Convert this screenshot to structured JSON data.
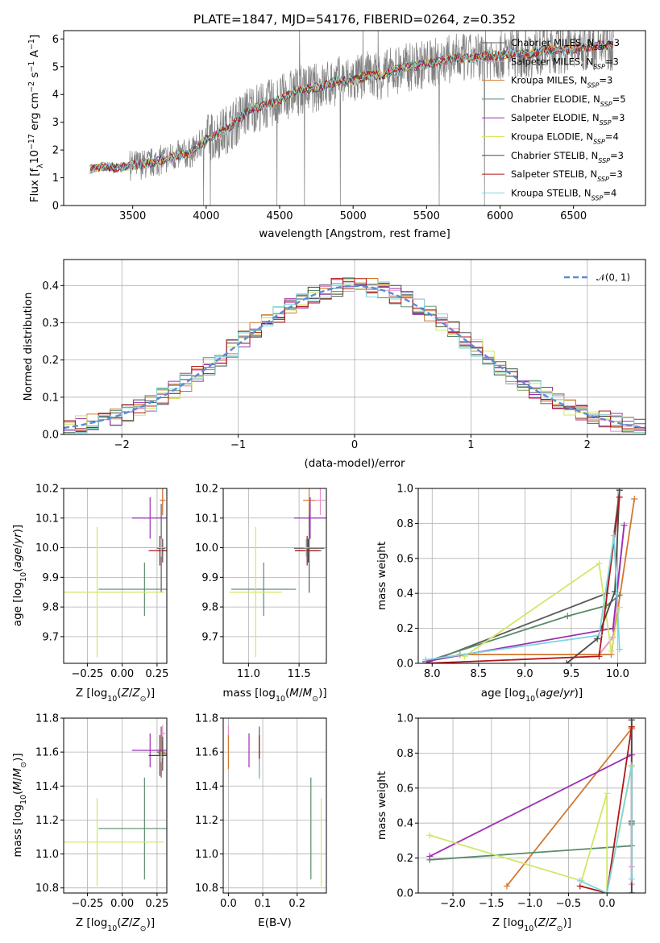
{
  "figure": {
    "title": "PLATE=1847, MJD=54176, FIBERID=0264, z=0.352"
  },
  "colors": {
    "data": "#808080",
    "models": [
      "#5a5a5a",
      "#e58fc7",
      "#d2782e",
      "#5a8a6a",
      "#9a30b0",
      "#cfe865",
      "#4a4a4a",
      "#b01818",
      "#7fd6dc"
    ]
  },
  "chart_data": [
    {
      "id": "spectrum",
      "type": "line",
      "title": "PLATE=1847, MJD=54176, FIBERID=0264, z=0.352",
      "xlabel": "wavelength [Angstrom, rest frame]",
      "ylabel": "Flux [f_λ 10^-17 erg cm^-2 s^-1 A^-1]",
      "xlim": [
        3030,
        6990
      ],
      "ylim": [
        0,
        6.3
      ],
      "xticks": [
        3500,
        4000,
        4500,
        5000,
        5500,
        6000,
        6500
      ],
      "yticks": [
        0,
        1,
        2,
        3,
        4,
        5,
        6
      ],
      "grid": false,
      "legend_position": "top-right",
      "series": [
        {
          "name": "Chabrier MILES, N_SSP=3"
        },
        {
          "name": "Salpeter MILES, N_SSP=3"
        },
        {
          "name": "Kroupa MILES, N_SSP=3"
        },
        {
          "name": "Chabrier ELODIE, N_SSP=5"
        },
        {
          "name": "Salpeter ELODIE, N_SSP=3"
        },
        {
          "name": "Kroupa ELODIE, N_SSP=4"
        },
        {
          "name": "Chabrier STELIB, N_SSP=3"
        },
        {
          "name": "Salpeter STELIB, N_SSP=3"
        },
        {
          "name": "Kroupa STELIB, N_SSP=4"
        }
      ],
      "continuum": {
        "x": [
          3210,
          3300,
          3400,
          3500,
          3600,
          3700,
          3800,
          3900,
          4000,
          4100,
          4200,
          4300,
          4400,
          4500,
          4600,
          4700,
          4800,
          4900,
          5000,
          5100,
          5200,
          5300,
          5400,
          5500,
          5600,
          5700,
          5800,
          5900,
          6000,
          6100,
          6200,
          6300,
          6400,
          6500,
          6600,
          6700,
          6770
        ],
        "y": [
          1.3,
          1.4,
          1.35,
          1.45,
          1.5,
          1.65,
          1.8,
          1.9,
          2.4,
          2.6,
          3.0,
          3.5,
          3.6,
          3.8,
          4.1,
          4.2,
          4.3,
          4.5,
          4.5,
          4.7,
          4.7,
          4.9,
          5.0,
          5.1,
          5.2,
          5.3,
          5.3,
          5.4,
          5.4,
          5.5,
          5.45,
          5.6,
          5.6,
          5.65,
          5.7,
          5.8,
          5.75
        ]
      }
    },
    {
      "id": "residuals",
      "type": "line",
      "xlabel": "(data-model)/error",
      "ylabel": "Normed distribution",
      "xlim": [
        -2.5,
        2.5
      ],
      "ylim": [
        0,
        0.47
      ],
      "xticks": [
        -2,
        -1,
        0,
        1,
        2
      ],
      "yticks": [
        0.0,
        0.1,
        0.2,
        0.3,
        0.4
      ],
      "grid": true,
      "legend_position": "top-right",
      "series": [
        {
          "name": "𝒩(0, 1)",
          "style": "dashed",
          "color": "#5b8bd6"
        }
      ]
    },
    {
      "id": "z_age",
      "type": "scatter",
      "xlabel": "Z [log10(Z/Z⊙)]",
      "ylabel": "age  [log10(age/yr)]",
      "xlim": [
        -0.42,
        0.32
      ],
      "ylim": [
        9.61,
        10.2
      ],
      "xticks": [
        -0.25,
        0.0,
        0.25
      ],
      "yticks": [
        9.7,
        9.8,
        9.9,
        10.0,
        10.1,
        10.2
      ],
      "grid": true,
      "points": [
        {
          "x": 0.28,
          "y": 9.998,
          "xerr": 0.03,
          "yerr": 0.15
        },
        {
          "x": 0.29,
          "y": 10.16,
          "xerr": 0.02,
          "yerr": 0.05
        },
        {
          "x": 0.29,
          "y": 10.16,
          "xerr": 0.02,
          "yerr": 0.05
        },
        {
          "x": 0.16,
          "y": 9.86,
          "xerr": 0.33,
          "yerr": 0.09
        },
        {
          "x": 0.2,
          "y": 10.1,
          "xerr": 0.13,
          "yerr": 0.07
        },
        {
          "x": -0.18,
          "y": 9.85,
          "xerr": 0.48,
          "yerr": 0.22
        },
        {
          "x": 0.29,
          "y": 9.99,
          "xerr": 0.03,
          "yerr": 0.04
        },
        {
          "x": 0.27,
          "y": 9.99,
          "xerr": 0.08,
          "yerr": 0.05
        },
        {
          "x": 0.28,
          "y": 10.0,
          "xerr": 0.02,
          "yerr": 0.03
        }
      ]
    },
    {
      "id": "mass_age",
      "type": "scatter",
      "xlabel": "mass [log10(M/M⊙)]",
      "ylabel": "",
      "xlim": [
        10.75,
        11.77
      ],
      "ylim": [
        9.61,
        10.2
      ],
      "xticks": [
        11.0,
        11.5
      ],
      "yticks": [
        9.7,
        9.8,
        9.9,
        10.0,
        10.1,
        10.2
      ],
      "grid": true,
      "points": [
        {
          "x": 11.6,
          "y": 9.998,
          "xerr": 0.15,
          "yerr": 0.15
        },
        {
          "x": 11.71,
          "y": 10.16,
          "xerr": 0.05,
          "yerr": 0.05
        },
        {
          "x": 11.6,
          "y": 10.16,
          "xerr": 0.06,
          "yerr": 0.05
        },
        {
          "x": 11.15,
          "y": 9.86,
          "xerr": 0.32,
          "yerr": 0.09
        },
        {
          "x": 11.61,
          "y": 10.1,
          "xerr": 0.16,
          "yerr": 0.07
        },
        {
          "x": 11.07,
          "y": 9.85,
          "xerr": 0.26,
          "yerr": 0.22
        },
        {
          "x": 11.59,
          "y": 9.99,
          "xerr": 0.13,
          "yerr": 0.04
        },
        {
          "x": 11.58,
          "y": 9.99,
          "xerr": 0.12,
          "yerr": 0.05
        },
        {
          "x": 11.57,
          "y": 10.0,
          "xerr": 0.03,
          "yerr": 0.03
        }
      ]
    },
    {
      "id": "age_weight",
      "type": "line",
      "xlabel": "age  [log10(age/yr)]",
      "ylabel": "mass weight",
      "xlim": [
        7.85,
        10.3
      ],
      "ylim": [
        0,
        1.0
      ],
      "xticks": [
        8.0,
        8.5,
        9.0,
        9.5,
        10.0
      ],
      "yticks": [
        0.0,
        0.2,
        0.4,
        0.6,
        0.8,
        1.0
      ],
      "grid": true,
      "series": [
        {
          "x": [
            7.93,
            9.88,
            10.02
          ],
          "y": [
            0.0,
            0.4,
            0.99
          ]
        },
        {
          "x": [
            9.8,
            9.95,
            10.07
          ],
          "y": [
            0.05,
            0.15,
            0.79
          ]
        },
        {
          "x": [
            8.3,
            9.93,
            10.18
          ],
          "y": [
            0.05,
            0.05,
            0.94
          ]
        },
        {
          "x": [
            7.93,
            9.46,
            9.88,
            10.02
          ],
          "y": [
            0.01,
            0.27,
            0.33,
            0.39
          ]
        },
        {
          "x": [
            7.93,
            9.95,
            10.07
          ],
          "y": [
            0.01,
            0.2,
            0.79
          ]
        },
        {
          "x": [
            8.35,
            9.8,
            9.93,
            10.02
          ],
          "y": [
            0.04,
            0.57,
            0.07,
            0.32
          ]
        },
        {
          "x": [
            9.45,
            9.78,
            9.97,
            10.02
          ],
          "y": [
            0.0,
            0.14,
            0.41,
            0.99
          ]
        },
        {
          "x": [
            7.93,
            9.8,
            10.02
          ],
          "y": [
            0.0,
            0.04,
            0.95
          ]
        },
        {
          "x": [
            7.93,
            9.8,
            9.96,
            10.02
          ],
          "y": [
            0.02,
            0.16,
            0.73,
            0.08
          ]
        }
      ]
    },
    {
      "id": "z_mass",
      "type": "scatter",
      "xlabel": "Z [log10(Z/Z⊙)]",
      "ylabel": "mass [log10(M/M⊙)]",
      "xlim": [
        -0.42,
        0.32
      ],
      "ylim": [
        10.77,
        11.8
      ],
      "xticks": [
        -0.25,
        0.0,
        0.25
      ],
      "yticks": [
        10.8,
        11.0,
        11.2,
        11.4,
        11.6,
        11.8
      ],
      "grid": true,
      "points": [
        {
          "x": 0.28,
          "y": 11.6,
          "xerr": 0.03,
          "yerr": 0.15
        },
        {
          "x": 0.29,
          "y": 11.71,
          "xerr": 0.02,
          "yerr": 0.05
        },
        {
          "x": 0.29,
          "y": 11.6,
          "xerr": 0.02,
          "yerr": 0.06
        },
        {
          "x": 0.16,
          "y": 11.15,
          "xerr": 0.33,
          "yerr": 0.3
        },
        {
          "x": 0.2,
          "y": 11.61,
          "xerr": 0.13,
          "yerr": 0.1
        },
        {
          "x": -0.18,
          "y": 11.07,
          "xerr": 0.48,
          "yerr": 0.26
        },
        {
          "x": 0.29,
          "y": 11.59,
          "xerr": 0.03,
          "yerr": 0.1
        },
        {
          "x": 0.27,
          "y": 11.58,
          "xerr": 0.08,
          "yerr": 0.12
        },
        {
          "x": 0.28,
          "y": 11.57,
          "xerr": 0.02,
          "yerr": 0.03
        }
      ]
    },
    {
      "id": "ebv_mass",
      "type": "scatter",
      "xlabel": "E(B-V)",
      "ylabel": "",
      "xlim": [
        -0.015,
        0.285
      ],
      "ylim": [
        10.77,
        11.8
      ],
      "xticks": [
        0.0,
        0.1,
        0.2
      ],
      "yticks": [
        10.8,
        11.0,
        11.2,
        11.4,
        11.6,
        11.8
      ],
      "grid": true,
      "points": [
        {
          "x": 0.09,
          "y": 11.6,
          "yerr": 0.15
        },
        {
          "x": 0.0,
          "y": 11.71,
          "yerr": 0.05
        },
        {
          "x": 0.0,
          "y": 11.6,
          "yerr": 0.1
        },
        {
          "x": 0.24,
          "y": 11.15,
          "yerr": 0.3
        },
        {
          "x": 0.06,
          "y": 11.61,
          "yerr": 0.1
        },
        {
          "x": 0.27,
          "y": 11.07,
          "yerr": 0.26
        },
        {
          "x": 0.09,
          "y": 11.59,
          "yerr": 0.1
        },
        {
          "x": 0.09,
          "y": 11.58,
          "yerr": 0.12
        },
        {
          "x": 0.09,
          "y": 11.5,
          "yerr": 0.06
        }
      ]
    },
    {
      "id": "z_weight",
      "type": "line",
      "xlabel": "Z [log10(Z/Z⊙)]",
      "ylabel": "mass weight",
      "xlim": [
        -2.45,
        0.5
      ],
      "ylim": [
        0,
        1.0
      ],
      "xticks": [
        -2.0,
        -1.5,
        -1.0,
        -0.5,
        0.0
      ],
      "yticks": [
        0.0,
        0.2,
        0.4,
        0.6,
        0.8,
        1.0
      ],
      "grid": true,
      "series": [
        {
          "x": [
            0.32,
            0.32,
            0.32
          ],
          "y": [
            0.0,
            0.4,
            0.99
          ]
        },
        {
          "x": [
            0.32,
            0.32,
            0.32
          ],
          "y": [
            0.05,
            0.15,
            0.79
          ]
        },
        {
          "x": [
            -1.3,
            0.32,
            0.32
          ],
          "y": [
            0.04,
            0.94,
            0.94
          ]
        },
        {
          "x": [
            -2.3,
            0.32,
            0.32
          ],
          "y": [
            0.19,
            0.27,
            0.39
          ]
        },
        {
          "x": [
            -2.3,
            0.32,
            0.32
          ],
          "y": [
            0.21,
            0.79,
            0.79
          ]
        },
        {
          "x": [
            -2.3,
            -0.33,
            0.0,
            0.0,
            0.32
          ],
          "y": [
            0.33,
            0.07,
            0.57,
            0.0,
            0.72
          ]
        },
        {
          "x": [
            0.32,
            0.32,
            0.32
          ],
          "y": [
            0.0,
            0.41,
            0.99
          ]
        },
        {
          "x": [
            -0.35,
            0.0,
            0.32,
            0.32
          ],
          "y": [
            0.04,
            0.0,
            0.95,
            0.95
          ]
        },
        {
          "x": [
            -0.35,
            0.0,
            0.32,
            0.32
          ],
          "y": [
            0.07,
            0.0,
            0.73,
            0.08
          ]
        }
      ]
    }
  ]
}
